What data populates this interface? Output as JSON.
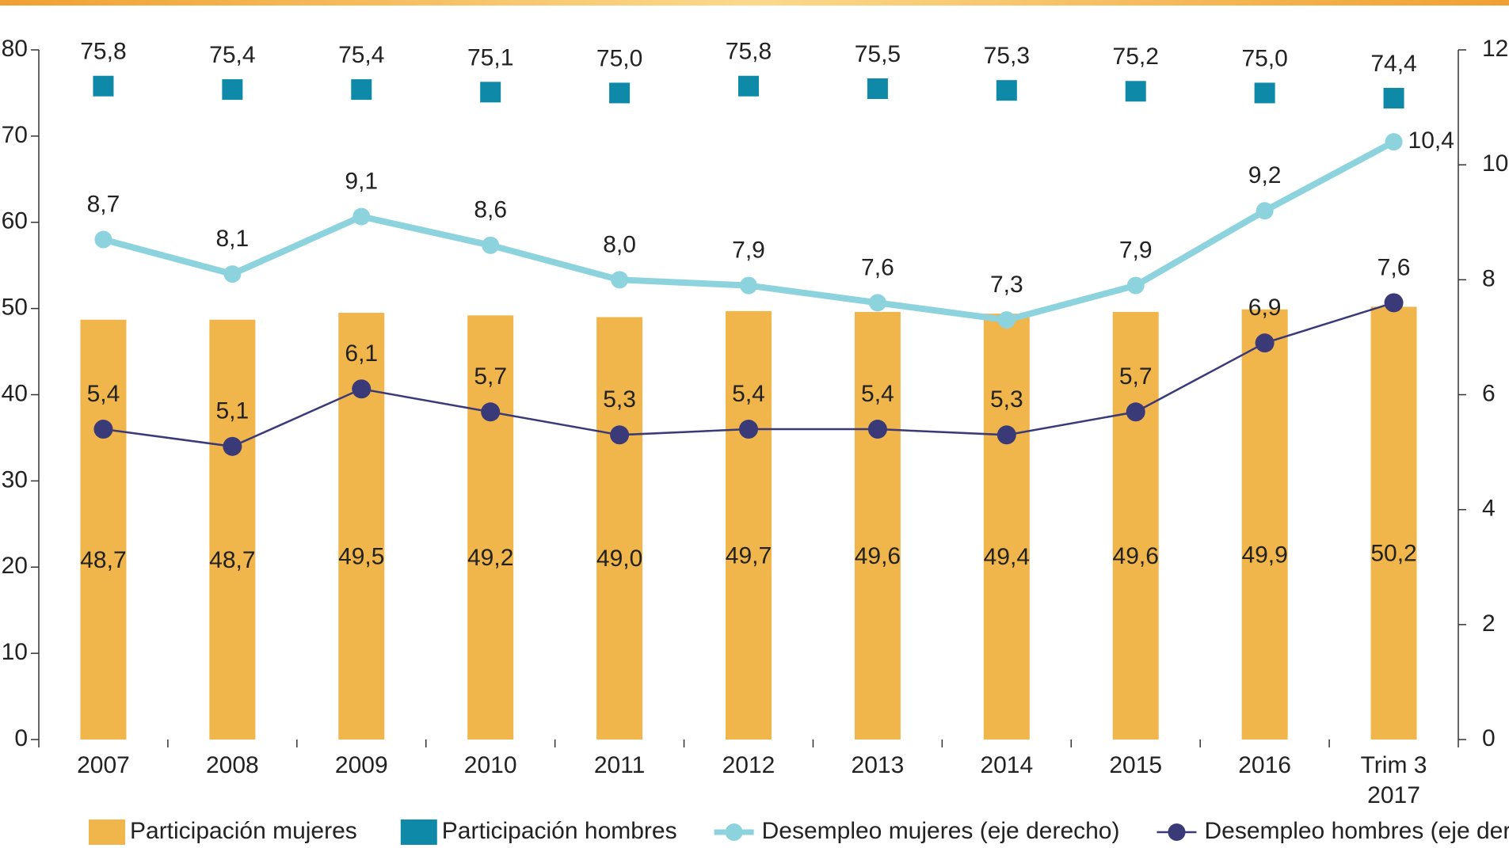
{
  "chart_data": {
    "type": "bar",
    "categories": [
      "2007",
      "2008",
      "2009",
      "2010",
      "2011",
      "2012",
      "2013",
      "2014",
      "2015",
      "2016",
      "Trim 3 2017"
    ],
    "series": [
      {
        "name": "Participación mujeres",
        "type": "bar",
        "color": "#f0b54b",
        "values": [
          48.7,
          48.7,
          49.5,
          49.2,
          49.0,
          49.7,
          49.6,
          49.4,
          49.6,
          49.9,
          50.2
        ],
        "value_labels": [
          "48,7",
          "48,7",
          "49,5",
          "49,2",
          "49,0",
          "49,7",
          "49,6",
          "49,4",
          "49,6",
          "49,9",
          "50,2"
        ]
      },
      {
        "name": "Participación hombres",
        "type": "scatter",
        "marker": "square",
        "color": "#0e8aa8",
        "values": [
          75.8,
          75.4,
          75.4,
          75.1,
          75.0,
          75.8,
          75.5,
          75.3,
          75.2,
          75.0,
          74.4
        ],
        "value_labels": [
          "75,8",
          "75,4",
          "75,4",
          "75,1",
          "75,0",
          "75,8",
          "75,5",
          "75,3",
          "75,2",
          "75,0",
          "74,4"
        ]
      },
      {
        "name": "Desempleo mujeres (eje derecho)",
        "type": "line",
        "axis": "y2",
        "color": "#8dd3de",
        "values": [
          8.7,
          8.1,
          9.1,
          8.6,
          8.0,
          7.9,
          7.6,
          7.3,
          7.9,
          9.2,
          10.4
        ],
        "value_labels": [
          "8,7",
          "8,1",
          "9,1",
          "8,6",
          "8,0",
          "7,9",
          "7,6",
          "7,3",
          "7,9",
          "9,2",
          "10,4"
        ]
      },
      {
        "name": "Desempleo hombres (eje derecho)",
        "type": "line",
        "axis": "y2",
        "color": "#3b3a78",
        "values": [
          5.4,
          5.1,
          6.1,
          5.7,
          5.3,
          5.4,
          5.4,
          5.3,
          5.7,
          6.9,
          7.6
        ],
        "value_labels": [
          "5,4",
          "5,1",
          "6,1",
          "5,7",
          "5,3",
          "5,4",
          "5,4",
          "5,3",
          "5,7",
          "6,9",
          "7,6"
        ]
      }
    ],
    "ylim": [
      0,
      80
    ],
    "yticks": [
      0,
      10,
      20,
      30,
      40,
      50,
      60,
      70,
      80
    ],
    "y2lim": [
      0,
      12
    ],
    "y2ticks": [
      0,
      2,
      4,
      6,
      8,
      10,
      12
    ],
    "legend": "bottom"
  }
}
